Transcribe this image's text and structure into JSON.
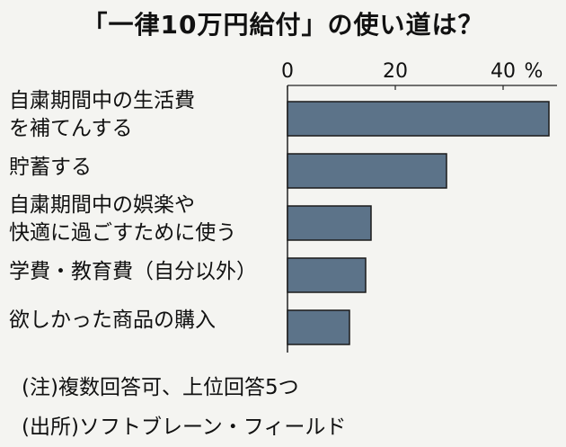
{
  "chart_data": {
    "type": "bar",
    "orientation": "horizontal",
    "title": "「一律10万円給付」の使い道は？",
    "unit": "%",
    "xlim": [
      0,
      50
    ],
    "ticks": [
      0,
      20,
      40
    ],
    "categories": [
      "自粛期間中の生活費\nを補てんする",
      "貯蓄する",
      "自粛期間中の娯楽や\n快適に過ごすために使う",
      "学費・教育費（自分以外）",
      "欲しかった商品の購入"
    ],
    "values": [
      48.5,
      29.5,
      15.5,
      14.5,
      11.5
    ],
    "bar_color": "#5c7389",
    "grid": false
  },
  "notes": {
    "note": "(注)複数回答可、上位回答5つ",
    "source": "(出所)ソフトブレーン・フィールド"
  }
}
